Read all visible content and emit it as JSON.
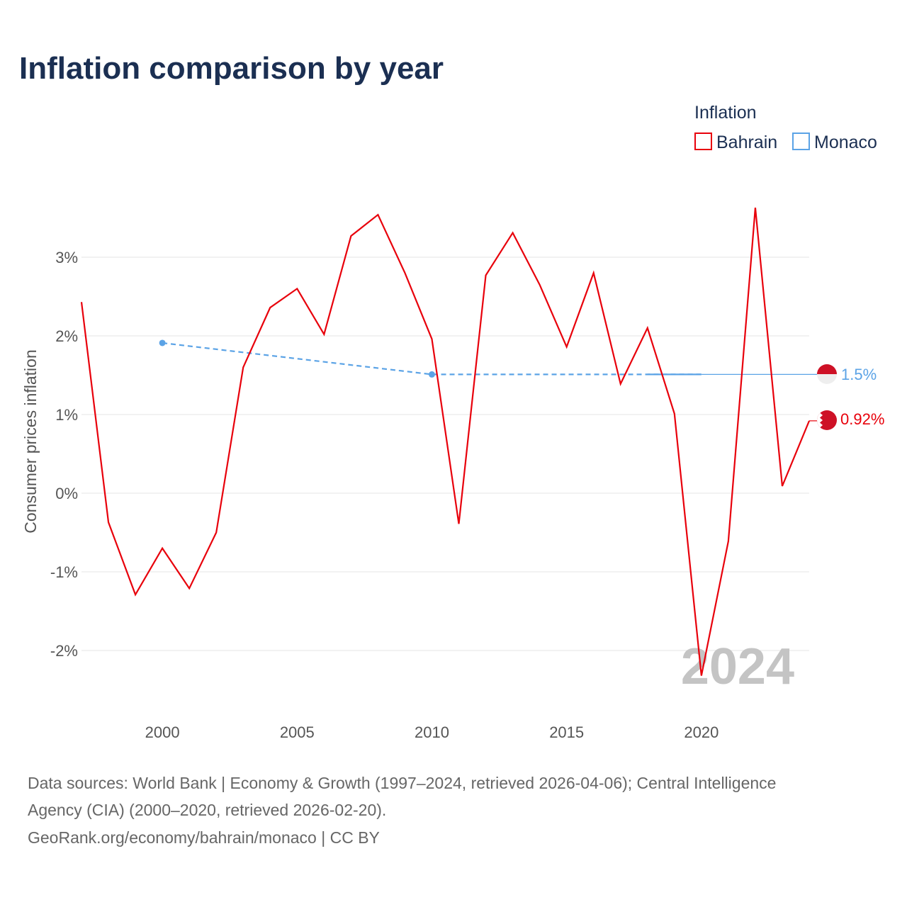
{
  "chart_data": {
    "type": "line",
    "title": "Inflation comparison by year",
    "legend_title": "Inflation",
    "ylabel": "Consumer prices inflation",
    "xlabel": "",
    "xlim": [
      1997,
      2024
    ],
    "ylim": [
      -2.8,
      4.2
    ],
    "x_ticks": [
      2000,
      2005,
      2010,
      2015,
      2020
    ],
    "x_tick_labels": [
      "2000",
      "2005",
      "2010",
      "2015",
      "2020"
    ],
    "y_ticks": [
      -2,
      -1,
      0,
      1,
      2,
      3
    ],
    "y_tick_labels": [
      "-2%",
      "-1%",
      "0%",
      "1%",
      "2%",
      "3%"
    ],
    "year_watermark": "2024",
    "legend_position": "top-right",
    "series": [
      {
        "name": "Bahrain",
        "color": "#e8000b",
        "style": "solid",
        "end_label": "0.92%",
        "flag": "bahrain-flag-icon",
        "points": [
          [
            1997,
            2.43
          ],
          [
            1998,
            -0.37
          ],
          [
            1999,
            -1.29
          ],
          [
            2000,
            -0.7
          ],
          [
            2001,
            -1.21
          ],
          [
            2002,
            -0.5
          ],
          [
            2003,
            1.6
          ],
          [
            2004,
            2.36
          ],
          [
            2005,
            2.6
          ],
          [
            2006,
            2.02
          ],
          [
            2007,
            3.27
          ],
          [
            2008,
            3.54
          ],
          [
            2009,
            2.8
          ],
          [
            2010,
            1.96
          ],
          [
            2011,
            -0.39
          ],
          [
            2012,
            2.77
          ],
          [
            2013,
            3.31
          ],
          [
            2014,
            2.65
          ],
          [
            2015,
            1.86
          ],
          [
            2016,
            2.8
          ],
          [
            2017,
            1.39
          ],
          [
            2018,
            2.1
          ],
          [
            2019,
            1.01
          ],
          [
            2020,
            -2.32
          ],
          [
            2021,
            -0.61
          ],
          [
            2022,
            3.63
          ],
          [
            2023,
            0.09
          ],
          [
            2024,
            0.92
          ]
        ]
      },
      {
        "name": "Monaco",
        "color": "#5ba3e6",
        "style": "dashed",
        "end_label": "1.5%",
        "flag": "monaco-flag-icon",
        "points": [
          [
            2000,
            1.91
          ],
          [
            2010,
            1.51
          ],
          [
            2020,
            1.51
          ]
        ],
        "carried_forward_to": 2024
      }
    ]
  },
  "footer": {
    "line1": "Data sources: World Bank | Economy & Growth (1997–2024, retrieved 2026-04-06); Central Intelligence",
    "line2": "Agency (CIA) (2000–2020, retrieved 2026-02-20).",
    "line3": "GeoRank.org/economy/bahrain/monaco | CC BY"
  }
}
